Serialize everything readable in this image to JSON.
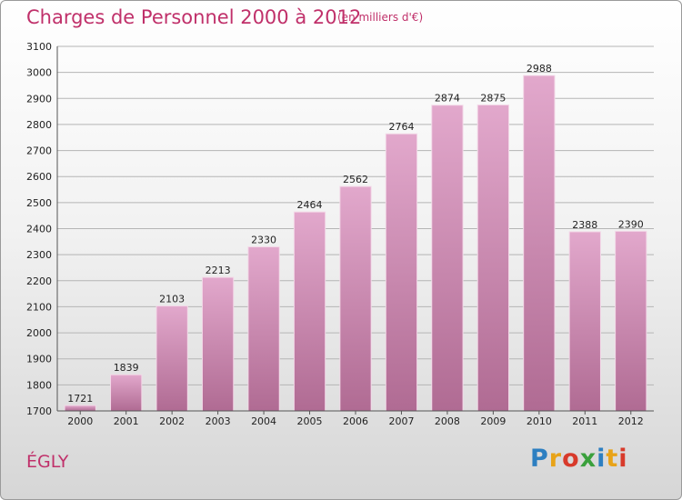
{
  "header": {
    "title": "Charges de Personnel 2000 à 2012",
    "subtitle": "(en milliers d'€)"
  },
  "footer": {
    "commune": "ÉGLY",
    "logo": {
      "letters": [
        "P",
        "r",
        "o",
        "x",
        "i",
        "t",
        "i"
      ],
      "colors": [
        "#2d7fc1",
        "#e8a318",
        "#d83a2b",
        "#3aa03c",
        "#2d7fc1",
        "#e8a318",
        "#d83a2b"
      ]
    }
  },
  "chart_data": {
    "type": "bar",
    "title": "Charges de Personnel 2000 à 2012",
    "subtitle": "(en milliers d'€)",
    "categories": [
      "2000",
      "2001",
      "2002",
      "2003",
      "2004",
      "2005",
      "2006",
      "2007",
      "2008",
      "2009",
      "2010",
      "2011",
      "2012"
    ],
    "values": [
      1721,
      1839,
      2103,
      2213,
      2330,
      2464,
      2562,
      2764,
      2874,
      2875,
      2988,
      2388,
      2390
    ],
    "ylim": [
      1700,
      3100
    ],
    "yticks": [
      1700,
      1800,
      1900,
      2000,
      2100,
      2200,
      2300,
      2400,
      2500,
      2600,
      2700,
      2800,
      2900,
      3000,
      3100
    ],
    "grid": true,
    "bar_color_top": "#e2a8cc",
    "bar_color_bottom": "#b06b93"
  }
}
